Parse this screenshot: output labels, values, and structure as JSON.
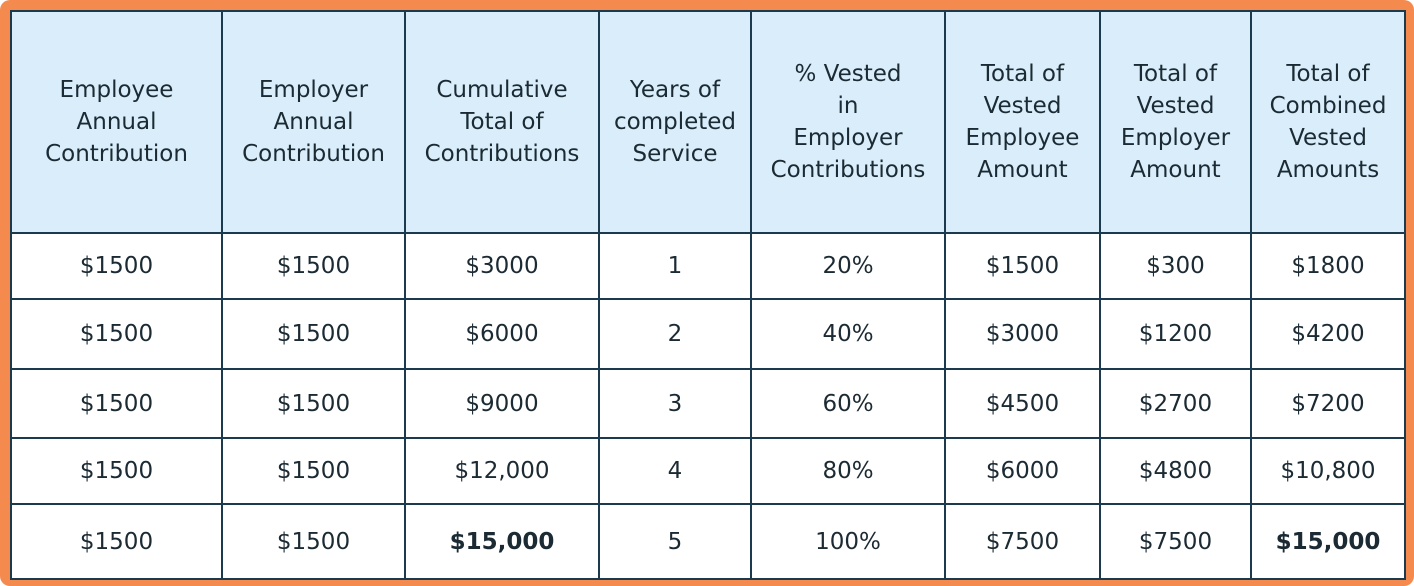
{
  "table": {
    "header": [
      [
        "Employee",
        "Annual",
        "Contribution"
      ],
      [
        "Employer",
        "Annual",
        "Contribution"
      ],
      [
        "Cumulative",
        "Total of",
        "Contributions"
      ],
      [
        "Years of",
        "completed",
        "Service"
      ],
      [
        "% Vested",
        "in",
        "Employer",
        "Contributions"
      ],
      [
        "Total of",
        "Vested",
        "Employee",
        "Amount"
      ],
      [
        "Total of",
        "Vested",
        "Employer",
        "Amount"
      ],
      [
        "Total of",
        "Combined",
        "Vested",
        "Amounts"
      ]
    ],
    "rows": [
      [
        "$1500",
        "$1500",
        "$3000",
        "1",
        "20%",
        "$1500",
        "$300",
        "$1800"
      ],
      [
        "$1500",
        "$1500",
        "$6000",
        "2",
        "40%",
        "$3000",
        "$1200",
        "$4200"
      ],
      [
        "$1500",
        "$1500",
        "$9000",
        "3",
        "60%",
        "$4500",
        "$2700",
        "$7200"
      ],
      [
        "$1500",
        "$1500",
        "$12,000",
        "4",
        "80%",
        "$6000",
        "$4800",
        "$10,800"
      ],
      [
        "$1500",
        "$1500",
        "$15,000",
        "5",
        "100%",
        "$7500",
        "$7500",
        "$15,000"
      ]
    ]
  }
}
